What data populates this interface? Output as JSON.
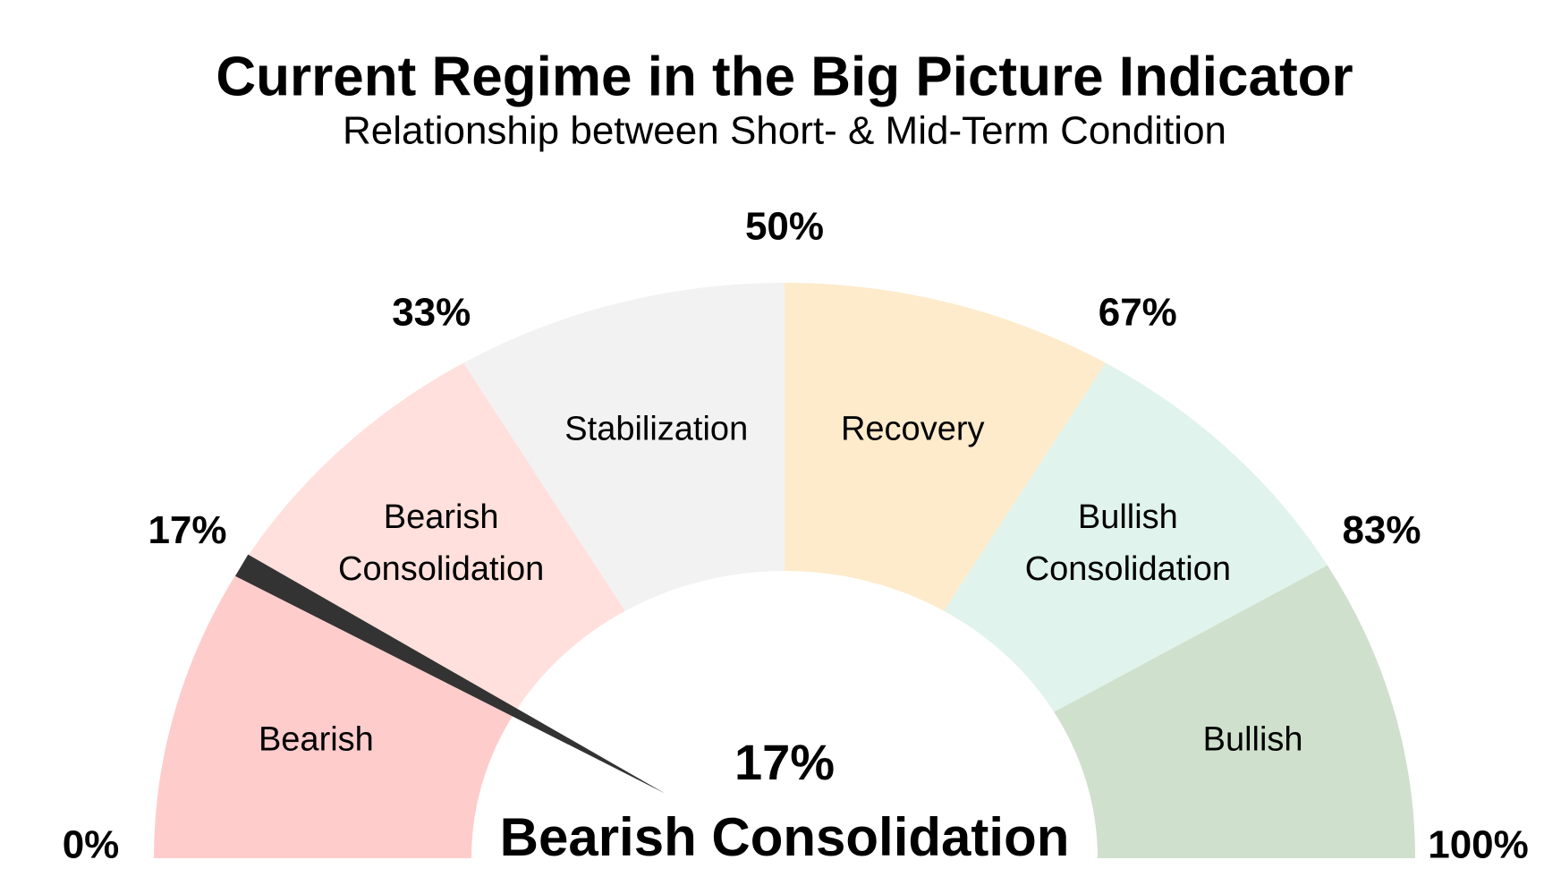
{
  "chart_data": {
    "type": "gauge",
    "title": "Current Regime in the Big Picture Indicator",
    "subtitle": "Relationship between Short- & Mid-Term Condition",
    "categories": [
      "Bearish",
      "Bearish Consolidation",
      "Stabilization",
      "Recovery",
      "Bullish Consolidation",
      "Bullish"
    ],
    "colors": [
      "#ffcccc",
      "#ffe0dc",
      "#f2f2f2",
      "#fdebcc",
      "#e0f3ec",
      "#cfe0cc"
    ],
    "ticks": [
      {
        "value": 0,
        "label": "0%"
      },
      {
        "value": 17,
        "label": "17%"
      },
      {
        "value": 33,
        "label": "33%"
      },
      {
        "value": 50,
        "label": "50%"
      },
      {
        "value": 67,
        "label": "67%"
      },
      {
        "value": 83,
        "label": "83%"
      },
      {
        "value": 100,
        "label": "100%"
      }
    ],
    "lim": [
      0,
      100
    ],
    "value": 17,
    "value_label": "17%",
    "regime": "Bearish Consolidation",
    "needle_color": "#333333"
  }
}
